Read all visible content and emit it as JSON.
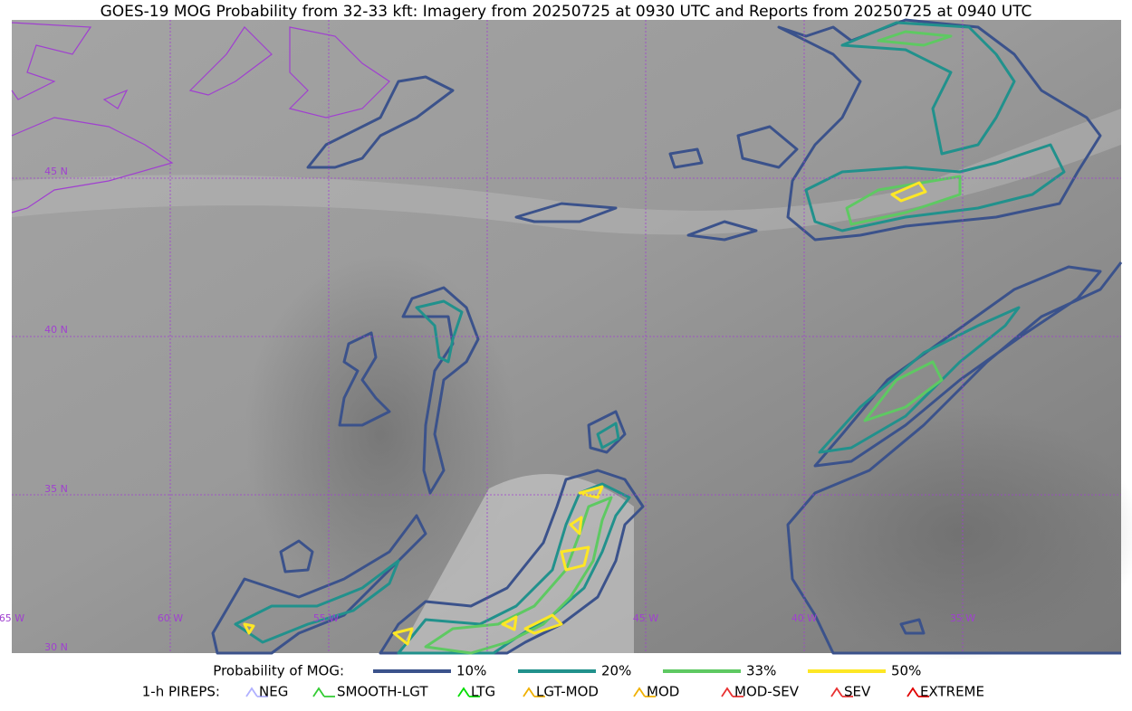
{
  "title": "GOES-19 MOG Probability from 32-33 kft: Imagery from 20250725 at 0930 UTC and Reports from 20250725 at 0940 UTC",
  "grid_labels": {
    "lat": [
      "45 N",
      "40 N",
      "35 N",
      "30 N"
    ],
    "lon": [
      "65 W",
      "60 W",
      "55 W",
      "45 W",
      "40 W",
      "35 W"
    ]
  },
  "legend": {
    "probability": {
      "label": "Probability of MOG:",
      "items": [
        {
          "label": "10%",
          "color": "#3b528b"
        },
        {
          "label": "20%",
          "color": "#21918c"
        },
        {
          "label": "33%",
          "color": "#5ec962"
        },
        {
          "label": "50%",
          "color": "#fde725"
        }
      ]
    },
    "pireps": {
      "label": "1-h PIREPS:",
      "items": [
        {
          "label": "NEG",
          "color": "#b0b0ff"
        },
        {
          "label": "SMOOTH-LGT",
          "color": "#33cc33"
        },
        {
          "label": "LTG",
          "color": "#00dd00"
        },
        {
          "label": "LGT-MOD",
          "color": "#f0b000"
        },
        {
          "label": "MOD",
          "color": "#f0b000"
        },
        {
          "label": "MOD-SEV",
          "color": "#e83030"
        },
        {
          "label": "SEV",
          "color": "#e83030"
        },
        {
          "label": "EXTREME",
          "color": "#e00000"
        }
      ]
    }
  }
}
